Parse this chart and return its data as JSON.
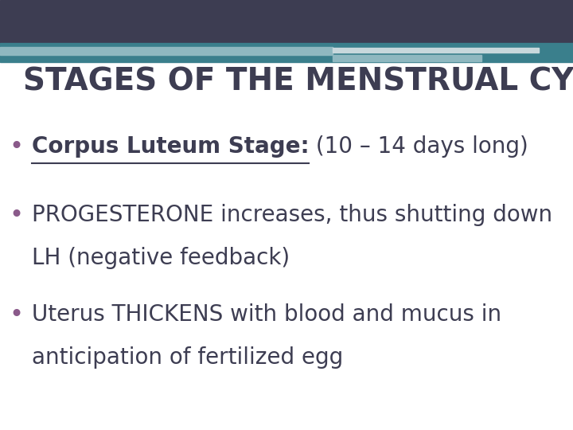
{
  "title": "STAGES OF THE MENSTRUAL CYCLE",
  "title_color": "#3d3d52",
  "title_fontsize": 28,
  "background_color": "#ffffff",
  "header_bar_color": "#3d3d52",
  "header_bar2_color": "#3a7f8c",
  "accent_bar_color": "#8fb8c0",
  "accent_bar2_color": "#c8d8dc",
  "bullet_color": "#8a5a8a",
  "text_color": "#3d3d52",
  "bullet1_bold": "Corpus Luteum Stage:",
  "bullet1_rest": " (10 – 14 days long)",
  "bullet2_line1": "PROGESTERONE increases, thus shutting down",
  "bullet2_line2": "LH (negative feedback)",
  "bullet3_line1": "Uterus THICKENS with blood and mucus in",
  "bullet3_line2": "anticipation of fertilized egg",
  "fontsize_bullet": 20
}
